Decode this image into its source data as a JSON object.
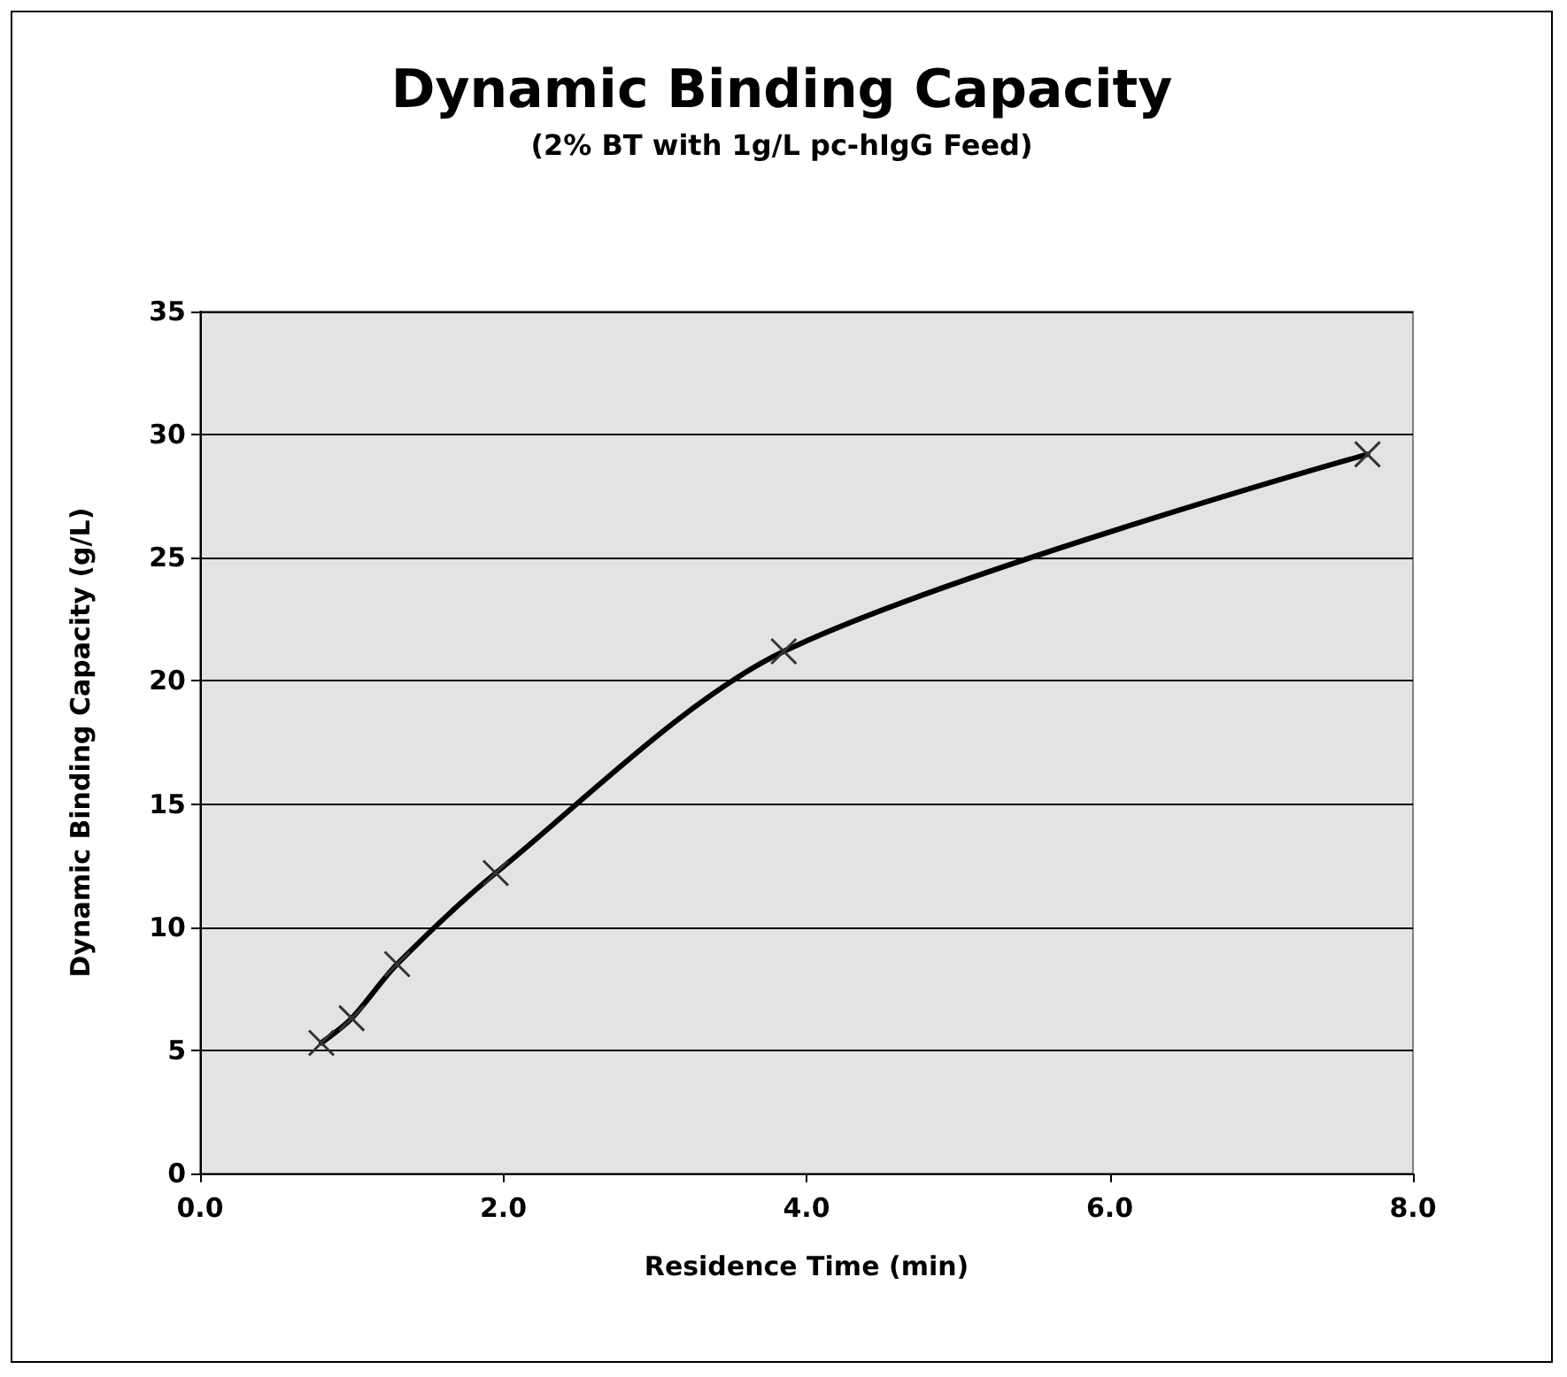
{
  "chart_data": {
    "type": "line",
    "title": "Dynamic Binding Capacity",
    "subtitle": "(2% BT with 1g/L pc-hIgG Feed)",
    "xlabel": "Residence Time (min)",
    "ylabel": "Dynamic Binding Capacity (g/L)",
    "x": [
      0.8,
      1.0,
      1.3,
      1.95,
      3.85,
      7.7
    ],
    "series": [
      {
        "color": "#000000",
        "values": [
          5.3,
          6.3,
          8.5,
          12.2,
          21.2,
          29.2
        ]
      }
    ],
    "xlim": [
      0,
      8
    ],
    "xticks": [
      {
        "value": 0,
        "label": "0.0"
      },
      {
        "value": 2,
        "label": "2.0"
      },
      {
        "value": 4,
        "label": "4.0"
      },
      {
        "value": 6,
        "label": "6.0"
      },
      {
        "value": 8,
        "label": "8.0"
      }
    ],
    "ylim": [
      0,
      35
    ],
    "yticks": [
      0,
      5,
      10,
      15,
      20,
      25,
      30,
      35
    ],
    "grid": "y",
    "marker": "cross",
    "line_style": "solid"
  }
}
